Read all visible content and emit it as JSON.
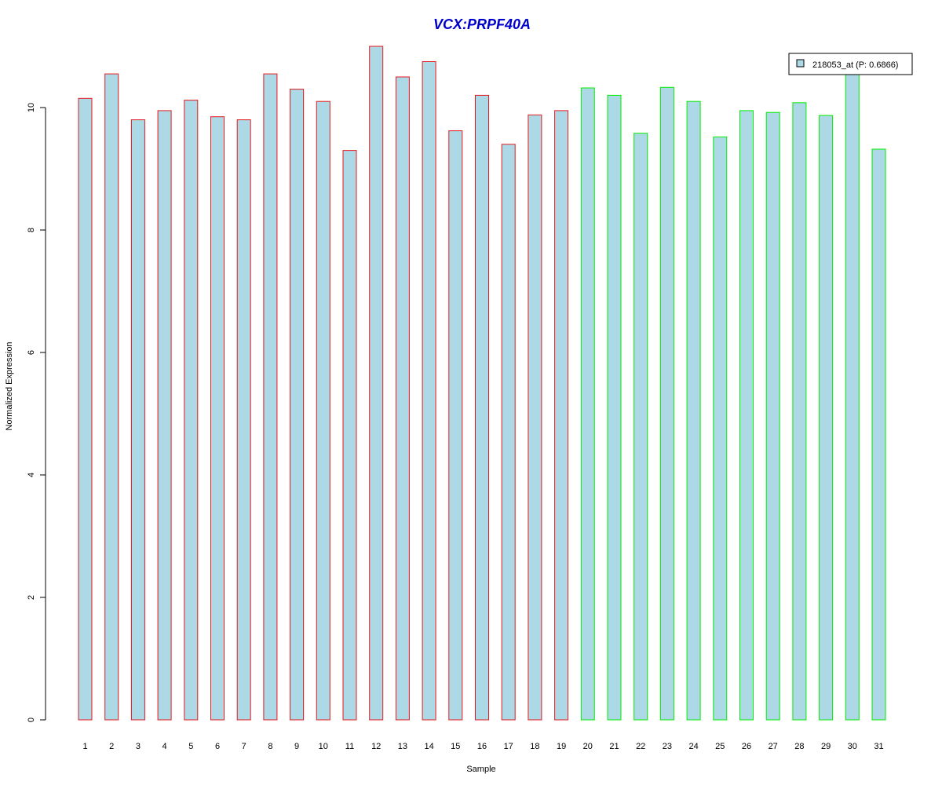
{
  "chart_data": {
    "type": "bar",
    "title": "VCX:PRPF40A",
    "xlabel": "Sample",
    "ylabel": "Normalized Expression",
    "categories": [
      "1",
      "2",
      "3",
      "4",
      "5",
      "6",
      "7",
      "8",
      "9",
      "10",
      "11",
      "12",
      "13",
      "14",
      "15",
      "16",
      "17",
      "18",
      "19",
      "20",
      "21",
      "22",
      "23",
      "24",
      "25",
      "26",
      "27",
      "28",
      "29",
      "30",
      "31"
    ],
    "series": [
      {
        "name": "218053_at (P: 0.6866)",
        "values": [
          10.15,
          10.55,
          9.8,
          9.95,
          10.12,
          9.85,
          9.8,
          10.55,
          10.3,
          10.1,
          9.3,
          11.0,
          10.5,
          10.75,
          9.62,
          10.2,
          9.4,
          9.88,
          9.95,
          10.32,
          10.2,
          9.58,
          10.33,
          10.1,
          9.52,
          9.95,
          9.92,
          10.08,
          9.87,
          10.6,
          9.32
        ]
      }
    ],
    "group_border_colors": [
      "#e41a1c",
      "#e41a1c",
      "#e41a1c",
      "#e41a1c",
      "#e41a1c",
      "#e41a1c",
      "#e41a1c",
      "#e41a1c",
      "#e41a1c",
      "#e41a1c",
      "#e41a1c",
      "#e41a1c",
      "#e41a1c",
      "#e41a1c",
      "#e41a1c",
      "#e41a1c",
      "#e41a1c",
      "#e41a1c",
      "#e41a1c",
      "#00ee00",
      "#00ee00",
      "#00ee00",
      "#00ee00",
      "#00ee00",
      "#00ee00",
      "#00ee00",
      "#00ee00",
      "#00ee00",
      "#00ee00",
      "#00ee00",
      "#00ee00"
    ],
    "bar_fill": "#add8e6",
    "title_color": "#0000cd",
    "yticks": [
      0,
      2,
      4,
      6,
      8,
      10
    ],
    "ylim": [
      0,
      11.0
    ],
    "grid": false,
    "legend_position": "top-right"
  }
}
